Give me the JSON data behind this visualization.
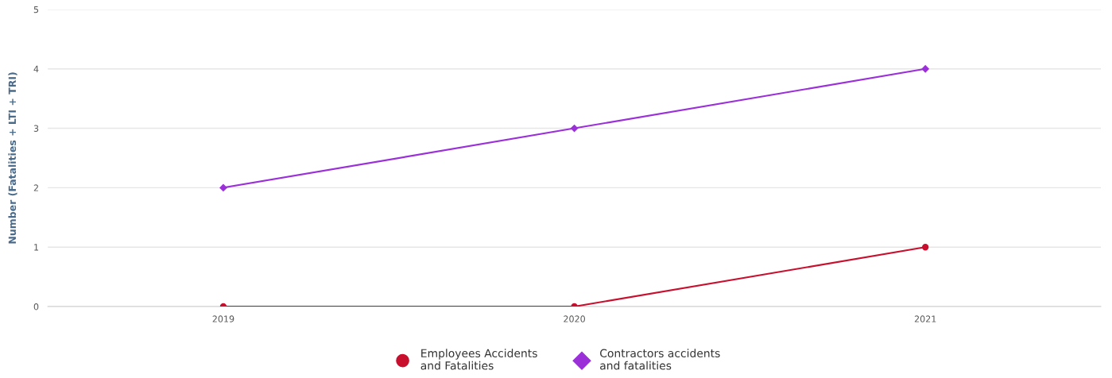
{
  "chart_data": {
    "type": "line",
    "ylabel": "Number (Fatalities + LTI + TRI)",
    "categories": [
      "2019",
      "2020",
      "2021"
    ],
    "series": [
      {
        "name": "Employees Accidents\nand Fatalities",
        "color": "#c8102e",
        "marker": "circle",
        "values": [
          0,
          0,
          1
        ]
      },
      {
        "name": "Contractors accidents\nand fatalities",
        "color": "#9b30d9",
        "marker": "diamond",
        "values": [
          2,
          3,
          4
        ]
      }
    ],
    "ylim": [
      0,
      5
    ],
    "yticks": [
      0,
      1,
      2,
      3,
      4,
      5
    ],
    "grid": "y",
    "legend": "bottom"
  }
}
